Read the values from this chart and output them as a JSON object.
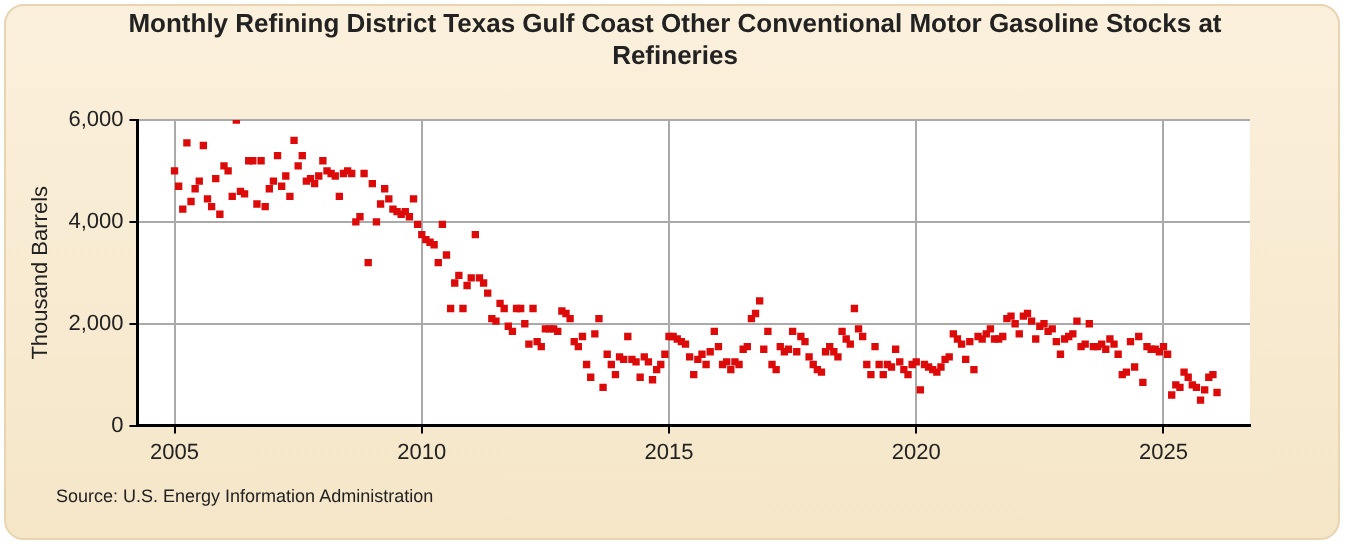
{
  "chart_data": {
    "type": "scatter",
    "title": "Monthly Refining District Texas Gulf Coast Other Conventional Motor Gasoline Stocks at Refineries",
    "ylabel": "Thousand Barrels",
    "annotations": [
      "Source: U.S. Energy Information Administration"
    ],
    "xlim": [
      "2004-04",
      "2026-10"
    ],
    "xticks": [
      "2005",
      "2010",
      "2015",
      "2020",
      "2025"
    ],
    "ylim": [
      0,
      6000
    ],
    "yticks": [
      {
        "value": 0,
        "label": "0"
      },
      {
        "value": 2000,
        "label": "2,000"
      },
      {
        "value": 4000,
        "label": "4,000"
      },
      {
        "value": 6000,
        "label": "6,000"
      }
    ],
    "grid": true,
    "legend": false,
    "marker": "square",
    "x": [
      "2005-01",
      "2005-02",
      "2005-03",
      "2005-04",
      "2005-05",
      "2005-06",
      "2005-07",
      "2005-08",
      "2005-09",
      "2005-10",
      "2005-11",
      "2005-12",
      "2006-01",
      "2006-02",
      "2006-03",
      "2006-04",
      "2006-05",
      "2006-06",
      "2006-07",
      "2006-08",
      "2006-09",
      "2006-10",
      "2006-11",
      "2006-12",
      "2007-01",
      "2007-02",
      "2007-03",
      "2007-04",
      "2007-05",
      "2007-06",
      "2007-07",
      "2007-08",
      "2007-09",
      "2007-10",
      "2007-11",
      "2007-12",
      "2008-01",
      "2008-02",
      "2008-03",
      "2008-04",
      "2008-05",
      "2008-06",
      "2008-07",
      "2008-08",
      "2008-09",
      "2008-10",
      "2008-11",
      "2008-12",
      "2009-01",
      "2009-02",
      "2009-03",
      "2009-04",
      "2009-05",
      "2009-06",
      "2009-07",
      "2009-08",
      "2009-09",
      "2009-10",
      "2009-11",
      "2009-12",
      "2010-01",
      "2010-02",
      "2010-03",
      "2010-04",
      "2010-05",
      "2010-06",
      "2010-07",
      "2010-08",
      "2010-09",
      "2010-10",
      "2010-11",
      "2010-12",
      "2011-01",
      "2011-02",
      "2011-03",
      "2011-04",
      "2011-05",
      "2011-06",
      "2011-07",
      "2011-08",
      "2011-09",
      "2011-10",
      "2011-11",
      "2011-12",
      "2012-01",
      "2012-02",
      "2012-03",
      "2012-04",
      "2012-05",
      "2012-06",
      "2012-07",
      "2012-08",
      "2012-09",
      "2012-10",
      "2012-11",
      "2012-12",
      "2013-01",
      "2013-02",
      "2013-03",
      "2013-04",
      "2013-05",
      "2013-06",
      "2013-07",
      "2013-08",
      "2013-09",
      "2013-10",
      "2013-11",
      "2013-12",
      "2014-01",
      "2014-02",
      "2014-03",
      "2014-04",
      "2014-05",
      "2014-06",
      "2014-07",
      "2014-08",
      "2014-09",
      "2014-10",
      "2014-11",
      "2014-12",
      "2015-01",
      "2015-02",
      "2015-03",
      "2015-04",
      "2015-05",
      "2015-06",
      "2015-07",
      "2015-08",
      "2015-09",
      "2015-10",
      "2015-11",
      "2015-12",
      "2016-01",
      "2016-02",
      "2016-03",
      "2016-04",
      "2016-05",
      "2016-06",
      "2016-07",
      "2016-08",
      "2016-09",
      "2016-10",
      "2016-11",
      "2016-12",
      "2017-01",
      "2017-02",
      "2017-03",
      "2017-04",
      "2017-05",
      "2017-06",
      "2017-07",
      "2017-08",
      "2017-09",
      "2017-10",
      "2017-11",
      "2017-12",
      "2018-01",
      "2018-02",
      "2018-03",
      "2018-04",
      "2018-05",
      "2018-06",
      "2018-07",
      "2018-08",
      "2018-09",
      "2018-10",
      "2018-11",
      "2018-12",
      "2019-01",
      "2019-02",
      "2019-03",
      "2019-04",
      "2019-05",
      "2019-06",
      "2019-07",
      "2019-08",
      "2019-09",
      "2019-10",
      "2019-11",
      "2019-12",
      "2020-01",
      "2020-02",
      "2020-03",
      "2020-04",
      "2020-05",
      "2020-06",
      "2020-07",
      "2020-08",
      "2020-09",
      "2020-10",
      "2020-11",
      "2020-12",
      "2021-01",
      "2021-02",
      "2021-03",
      "2021-04",
      "2021-05",
      "2021-06",
      "2021-07",
      "2021-08",
      "2021-09",
      "2021-10",
      "2021-11",
      "2021-12",
      "2022-01",
      "2022-02",
      "2022-03",
      "2022-04",
      "2022-05",
      "2022-06",
      "2022-07",
      "2022-08",
      "2022-09",
      "2022-10",
      "2022-11",
      "2022-12",
      "2023-01",
      "2023-02",
      "2023-03",
      "2023-04",
      "2023-05",
      "2023-06",
      "2023-07",
      "2023-08",
      "2023-09",
      "2023-10",
      "2023-11",
      "2023-12",
      "2024-01",
      "2024-02",
      "2024-03",
      "2024-04",
      "2024-05",
      "2024-06",
      "2024-07",
      "2024-08",
      "2024-09",
      "2024-10",
      "2024-11",
      "2024-12",
      "2025-01",
      "2025-02",
      "2025-03",
      "2025-04",
      "2025-05",
      "2025-06",
      "2025-07",
      "2025-08",
      "2025-09",
      "2025-10",
      "2025-11",
      "2025-12",
      "2026-01",
      "2026-02"
    ],
    "series": [
      {
        "color": "#dd0a0a",
        "values": [
          5000,
          4700,
          4250,
          5550,
          4400,
          4650,
          4800,
          5500,
          4450,
          4300,
          4850,
          4150,
          5100,
          5000,
          4500,
          6000,
          4600,
          4550,
          5200,
          5200,
          4350,
          5200,
          4300,
          4650,
          4800,
          5300,
          4700,
          4900,
          4500,
          5600,
          5100,
          5300,
          4800,
          4850,
          4750,
          4900,
          5200,
          5000,
          4950,
          4900,
          4500,
          4950,
          5000,
          4950,
          4000,
          4100,
          4950,
          3200,
          4750,
          4000,
          4350,
          4650,
          4450,
          4250,
          4200,
          4150,
          4200,
          4100,
          4450,
          3950,
          3750,
          3650,
          3600,
          3550,
          3200,
          3950,
          3350,
          2300,
          2800,
          2950,
          2300,
          2750,
          2900,
          3750,
          2900,
          2800,
          2600,
          2100,
          2050,
          2400,
          2300,
          1950,
          1850,
          2300,
          2300,
          2000,
          1600,
          2300,
          1650,
          1550,
          1900,
          1900,
          1900,
          1850,
          2250,
          2200,
          2100,
          1650,
          1550,
          1750,
          1200,
          950,
          1800,
          2100,
          750,
          1400,
          1200,
          1000,
          1350,
          1300,
          1750,
          1300,
          1250,
          950,
          1350,
          1250,
          900,
          1100,
          1200,
          1400,
          1750,
          1750,
          1700,
          1650,
          1600,
          1350,
          1000,
          1300,
          1400,
          1200,
          1450,
          1850,
          1550,
          1200,
          1250,
          1100,
          1250,
          1200,
          1500,
          1550,
          2100,
          2200,
          2450,
          1500,
          1850,
          1200,
          1100,
          1550,
          1450,
          1500,
          1850,
          1450,
          1750,
          1650,
          1350,
          1200,
          1100,
          1050,
          1450,
          1550,
          1450,
          1350,
          1850,
          1700,
          1600,
          2300,
          1900,
          1750,
          1200,
          1000,
          1550,
          1200,
          1000,
          1200,
          1150,
          1500,
          1250,
          1100,
          1000,
          1200,
          1250,
          700,
          1200,
          1150,
          1100,
          1050,
          1150,
          1300,
          1350,
          1800,
          1700,
          1600,
          1300,
          1650,
          1100,
          1750,
          1700,
          1800,
          1900,
          1700,
          1700,
          1750,
          2100,
          2150,
          2000,
          1800,
          2150,
          2200,
          2050,
          1700,
          1950,
          2000,
          1850,
          1900,
          1650,
          1400,
          1700,
          1750,
          1800,
          2050,
          1550,
          1600,
          2000,
          1550,
          1550,
          1600,
          1500,
          1700,
          1600,
          1400,
          1000,
          1050,
          1650,
          1150,
          1750,
          850,
          1550,
          1500,
          1500,
          1450,
          1550,
          1400,
          600,
          800,
          750,
          1050,
          950,
          800,
          750,
          500,
          700,
          950,
          1000,
          650
        ]
      }
    ]
  }
}
